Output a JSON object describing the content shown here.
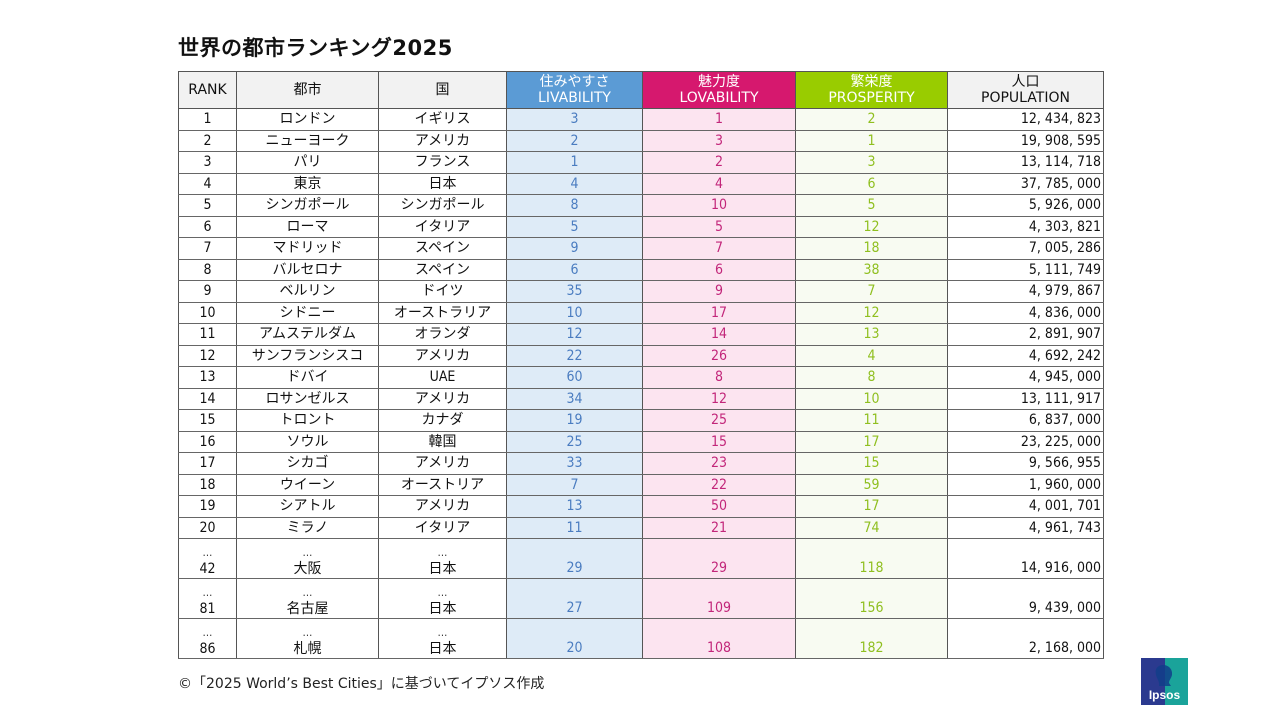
{
  "title": "世界の都市ランキング2025",
  "colors": {
    "livability_header": "#5b9bd5",
    "lovability_header": "#d6186e",
    "prosperity_header": "#99cc00",
    "livability_cell": "#deebf7",
    "lovability_cell": "#fce4f0",
    "prosperity_cell": "#f8fbf2",
    "livability_text": "#4a7cc0",
    "lovability_text": "#c2267a",
    "prosperity_text": "#8fbf1f"
  },
  "table": {
    "headers": {
      "rank": "RANK",
      "city": "都市",
      "country": "国",
      "livability_jp": "住みやすさ",
      "livability_en": "LIVABILITY",
      "lovability_jp": "魅力度",
      "lovability_en": "LOVABILITY",
      "prosperity_jp": "繁栄度",
      "prosperity_en": "PROSPERITY",
      "population_jp": "人口",
      "population_en": "POPULATION"
    },
    "ellipsis": "…",
    "rows": [
      {
        "rank": "1",
        "city": "ロンドン",
        "country": "イギリス",
        "livability": "3",
        "lovability": "1",
        "prosperity": "2",
        "population": "12, 434, 823"
      },
      {
        "rank": "2",
        "city": "ニューヨーク",
        "country": "アメリカ",
        "livability": "2",
        "lovability": "3",
        "prosperity": "1",
        "population": "19, 908, 595"
      },
      {
        "rank": "3",
        "city": "パリ",
        "country": "フランス",
        "livability": "1",
        "lovability": "2",
        "prosperity": "3",
        "population": "13, 114, 718"
      },
      {
        "rank": "4",
        "city": "東京",
        "country": "日本",
        "livability": "4",
        "lovability": "4",
        "prosperity": "6",
        "population": "37, 785, 000"
      },
      {
        "rank": "5",
        "city": "シンガポール",
        "country": "シンガポール",
        "livability": "8",
        "lovability": "10",
        "prosperity": "5",
        "population": "5, 926, 000"
      },
      {
        "rank": "6",
        "city": "ローマ",
        "country": "イタリア",
        "livability": "5",
        "lovability": "5",
        "prosperity": "12",
        "population": "4, 303, 821"
      },
      {
        "rank": "7",
        "city": "マドリッド",
        "country": "スペイン",
        "livability": "9",
        "lovability": "7",
        "prosperity": "18",
        "population": "7, 005, 286"
      },
      {
        "rank": "8",
        "city": "バルセロナ",
        "country": "スペイン",
        "livability": "6",
        "lovability": "6",
        "prosperity": "38",
        "population": "5, 111, 749"
      },
      {
        "rank": "9",
        "city": "ベルリン",
        "country": "ドイツ",
        "livability": "35",
        "lovability": "9",
        "prosperity": "7",
        "population": "4, 979, 867"
      },
      {
        "rank": "10",
        "city": "シドニー",
        "country": "オーストラリア",
        "livability": "10",
        "lovability": "17",
        "prosperity": "12",
        "population": "4, 836, 000"
      },
      {
        "rank": "11",
        "city": "アムステルダム",
        "country": "オランダ",
        "livability": "12",
        "lovability": "14",
        "prosperity": "13",
        "population": "2, 891, 907"
      },
      {
        "rank": "12",
        "city": "サンフランシスコ",
        "country": "アメリカ",
        "livability": "22",
        "lovability": "26",
        "prosperity": "4",
        "population": "4, 692, 242"
      },
      {
        "rank": "13",
        "city": "ドバイ",
        "country": "UAE",
        "livability": "60",
        "lovability": "8",
        "prosperity": "8",
        "population": "4, 945, 000"
      },
      {
        "rank": "14",
        "city": "ロサンゼルス",
        "country": "アメリカ",
        "livability": "34",
        "lovability": "12",
        "prosperity": "10",
        "population": "13, 111, 917"
      },
      {
        "rank": "15",
        "city": "トロント",
        "country": "カナダ",
        "livability": "19",
        "lovability": "25",
        "prosperity": "11",
        "population": "6, 837, 000"
      },
      {
        "rank": "16",
        "city": "ソウル",
        "country": "韓国",
        "livability": "25",
        "lovability": "15",
        "prosperity": "17",
        "population": "23, 225, 000"
      },
      {
        "rank": "17",
        "city": "シカゴ",
        "country": "アメリカ",
        "livability": "33",
        "lovability": "23",
        "prosperity": "15",
        "population": "9, 566, 955"
      },
      {
        "rank": "18",
        "city": "ウイーン",
        "country": "オーストリア",
        "livability": "7",
        "lovability": "22",
        "prosperity": "59",
        "population": "1, 960, 000"
      },
      {
        "rank": "19",
        "city": "シアトル",
        "country": "アメリカ",
        "livability": "13",
        "lovability": "50",
        "prosperity": "17",
        "population": "4, 001, 701"
      },
      {
        "rank": "20",
        "city": "ミラノ",
        "country": "イタリア",
        "livability": "11",
        "lovability": "21",
        "prosperity": "74",
        "population": "4, 961, 743"
      }
    ],
    "extra_rows": [
      {
        "rank": "42",
        "city": "大阪",
        "country": "日本",
        "livability": "29",
        "lovability": "29",
        "prosperity": "118",
        "population": "14, 916, 000"
      },
      {
        "rank": "81",
        "city": "名古屋",
        "country": "日本",
        "livability": "27",
        "lovability": "109",
        "prosperity": "156",
        "population": "9, 439, 000"
      },
      {
        "rank": "86",
        "city": "札幌",
        "country": "日本",
        "livability": "20",
        "lovability": "108",
        "prosperity": "182",
        "population": "2, 168, 000"
      }
    ]
  },
  "footer": "©「2025 World’s Best Cities」に基づいてイプソス作成",
  "logo": {
    "text": "Ipsos",
    "icon": "ipsos-logo-icon"
  }
}
